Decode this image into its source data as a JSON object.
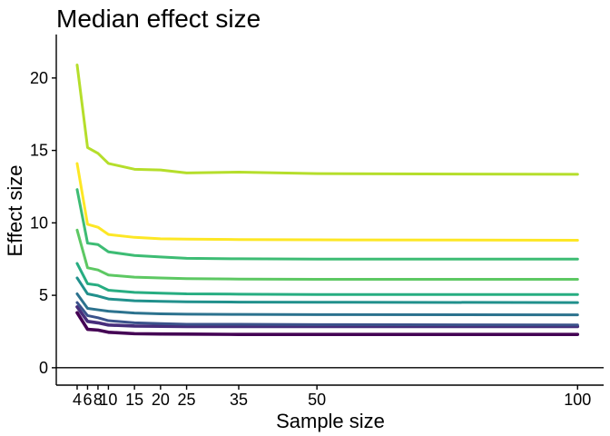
{
  "chart_data": {
    "type": "line",
    "title": "Median effect size",
    "xlabel": "Sample size",
    "ylabel": "Effect size",
    "x": [
      4,
      6,
      8,
      10,
      15,
      20,
      25,
      35,
      50,
      100
    ],
    "x_ticks": [
      4,
      6,
      8,
      10,
      15,
      20,
      25,
      35,
      50,
      100
    ],
    "xlim": [
      0,
      105
    ],
    "ylim": [
      -1.2,
      23
    ],
    "y_ticks": [
      0,
      5,
      10,
      15,
      20
    ],
    "grid": false,
    "legend": "none",
    "hline": 0,
    "series": [
      {
        "color": "#440154",
        "values": [
          3.8,
          2.65,
          2.6,
          2.45,
          2.35,
          2.33,
          2.32,
          2.3,
          2.3,
          2.3
        ]
      },
      {
        "color": "#472D7B",
        "values": [
          4.2,
          3.2,
          3.1,
          2.95,
          2.88,
          2.86,
          2.85,
          2.85,
          2.85,
          2.85
        ]
      },
      {
        "color": "#3B528B",
        "values": [
          4.5,
          3.6,
          3.45,
          3.25,
          3.1,
          3.05,
          3.0,
          3.0,
          2.98,
          2.95
        ]
      },
      {
        "color": "#2C728E",
        "values": [
          5.1,
          4.1,
          4.0,
          3.9,
          3.78,
          3.72,
          3.7,
          3.68,
          3.67,
          3.65
        ]
      },
      {
        "color": "#21908C",
        "values": [
          6.2,
          5.1,
          4.95,
          4.75,
          4.62,
          4.58,
          4.55,
          4.53,
          4.52,
          4.5
        ]
      },
      {
        "color": "#27AD81",
        "values": [
          7.2,
          5.8,
          5.7,
          5.35,
          5.2,
          5.15,
          5.1,
          5.08,
          5.05,
          5.05
        ]
      },
      {
        "color": "#5DC863",
        "values": [
          9.5,
          6.9,
          6.75,
          6.4,
          6.25,
          6.2,
          6.15,
          6.12,
          6.1,
          6.1
        ]
      },
      {
        "color": "#3DBC74",
        "values": [
          12.3,
          8.6,
          8.5,
          8.0,
          7.75,
          7.65,
          7.55,
          7.52,
          7.5,
          7.5
        ]
      },
      {
        "color": "#FDE725",
        "values": [
          14.1,
          9.9,
          9.7,
          9.2,
          9.0,
          8.9,
          8.88,
          8.85,
          8.83,
          8.8
        ]
      },
      {
        "color": "#B5DE2B",
        "values": [
          20.9,
          15.2,
          14.8,
          14.1,
          13.7,
          13.65,
          13.45,
          13.5,
          13.4,
          13.35
        ]
      }
    ]
  }
}
